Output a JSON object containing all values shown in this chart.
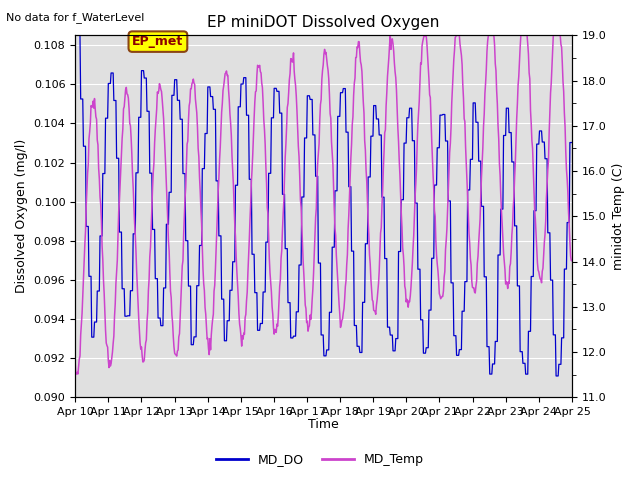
{
  "title": "EP miniDOT Dissolved Oxygen",
  "no_data_text": "No data for f_WaterLevel",
  "ep_met_label": "EP_met",
  "xlabel": "Time",
  "ylabel_left": "Dissolved Oxygen (mg/l)",
  "ylabel_right": "minidot Temp (C)",
  "ylim_left": [
    0.09,
    0.1085
  ],
  "ylim_right": [
    11.0,
    19.0
  ],
  "yticks_left": [
    0.09,
    0.092,
    0.094,
    0.096,
    0.098,
    0.1,
    0.102,
    0.104,
    0.106,
    0.108
  ],
  "yticks_right": [
    11.0,
    12.0,
    13.0,
    14.0,
    15.0,
    16.0,
    17.0,
    18.0,
    19.0
  ],
  "xtick_labels": [
    "Apr 10",
    "Apr 11",
    "Apr 12",
    "Apr 13",
    "Apr 14",
    "Apr 15",
    "Apr 16",
    "Apr 17",
    "Apr 18",
    "Apr 19",
    "Apr 20",
    "Apr 21",
    "Apr 22",
    "Apr 23",
    "Apr 24",
    "Apr 25"
  ],
  "color_do": "#0000cc",
  "color_temp": "#cc44cc",
  "legend_do": "MD_DO",
  "legend_temp": "MD_Temp",
  "bg_color": "#e0e0e0",
  "fig_bg_color": "#ffffff",
  "ep_met_bg": "#ffff00",
  "ep_met_text_color": "#8b0000",
  "ep_met_edge_color": "#8b4513"
}
